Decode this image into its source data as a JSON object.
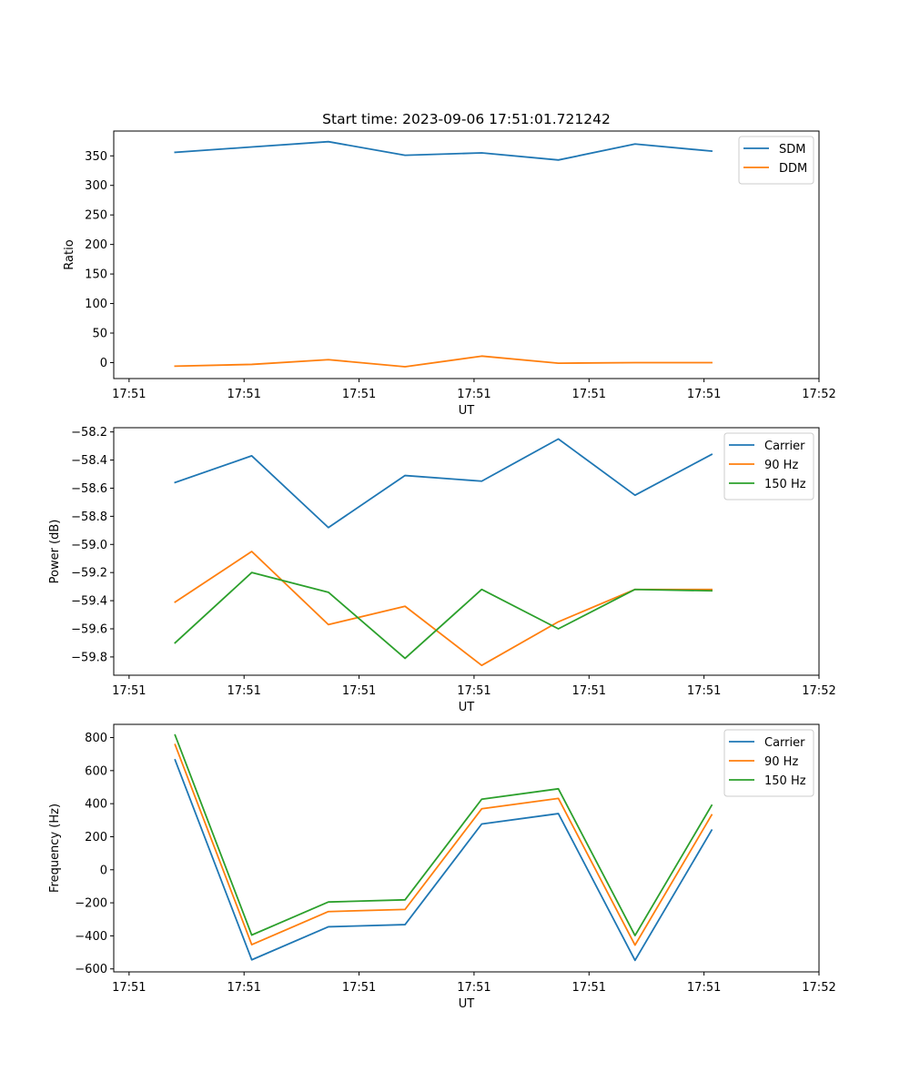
{
  "chart_data": [
    {
      "type": "line",
      "title": "Start time: 2023-09-06 17:51:01.721242",
      "xlabel": "UT",
      "ylabel": "Ratio",
      "x": [
        1,
        2,
        3,
        4,
        5,
        6,
        7,
        8
      ],
      "xlim": [
        0.2,
        9.4
      ],
      "xticks": [
        0.4,
        1.9,
        3.4,
        4.9,
        6.4,
        7.9,
        9.4
      ],
      "xtick_labels": [
        "17:51",
        "17:51",
        "17:51",
        "17:51",
        "17:51",
        "17:51",
        "17:52"
      ],
      "ylim": [
        -27,
        392
      ],
      "yticks": [
        0,
        50,
        100,
        150,
        200,
        250,
        300,
        350
      ],
      "ytick_labels": [
        "0",
        "50",
        "100",
        "150",
        "200",
        "250",
        "300",
        "350"
      ],
      "legend": "top-right",
      "series": [
        {
          "name": "SDM",
          "color": "#1f77b4",
          "values": [
            356,
            365,
            374,
            351,
            355,
            343,
            370,
            358
          ]
        },
        {
          "name": "DDM",
          "color": "#ff7f0e",
          "values": [
            -6,
            -3,
            5,
            -7,
            11,
            -1,
            0,
            0
          ]
        }
      ]
    },
    {
      "type": "line",
      "title": "",
      "xlabel": "UT",
      "ylabel": "Power (dB)",
      "x": [
        1,
        2,
        3,
        4,
        5,
        6,
        7,
        8
      ],
      "xlim": [
        0.2,
        9.4
      ],
      "xticks": [
        0.4,
        1.9,
        3.4,
        4.9,
        6.4,
        7.9,
        9.4
      ],
      "xtick_labels": [
        "17:51",
        "17:51",
        "17:51",
        "17:51",
        "17:51",
        "17:51",
        "17:52"
      ],
      "ylim": [
        -59.93,
        -58.17
      ],
      "yticks": [
        -58.2,
        -58.4,
        -58.6,
        -58.8,
        -59.0,
        -59.2,
        -59.4,
        -59.6,
        -59.8
      ],
      "ytick_labels": [
        "−58.2",
        "−58.4",
        "−58.6",
        "−58.8",
        "−59.0",
        "−59.2",
        "−59.4",
        "−59.6",
        "−59.8"
      ],
      "legend": "top-right",
      "series": [
        {
          "name": "Carrier",
          "color": "#1f77b4",
          "values": [
            -58.56,
            -58.37,
            -58.88,
            -58.51,
            -58.55,
            -58.25,
            -58.65,
            -58.36
          ]
        },
        {
          "name": "90 Hz",
          "color": "#ff7f0e",
          "values": [
            -59.41,
            -59.05,
            -59.57,
            -59.44,
            -59.86,
            -59.55,
            -59.32,
            -59.32
          ]
        },
        {
          "name": "150 Hz",
          "color": "#2ca02c",
          "values": [
            -59.7,
            -59.2,
            -59.34,
            -59.81,
            -59.32,
            -59.6,
            -59.32,
            -59.33
          ]
        }
      ]
    },
    {
      "type": "line",
      "title": "",
      "xlabel": "UT",
      "ylabel": "Frequency (Hz)",
      "x": [
        1,
        2,
        3,
        4,
        5,
        6,
        7,
        8
      ],
      "xlim": [
        0.2,
        9.4
      ],
      "xticks": [
        0.4,
        1.9,
        3.4,
        4.9,
        6.4,
        7.9,
        9.4
      ],
      "xtick_labels": [
        "17:51",
        "17:51",
        "17:51",
        "17:51",
        "17:51",
        "17:51",
        "17:52"
      ],
      "ylim": [
        -618,
        880
      ],
      "yticks": [
        -600,
        -400,
        -200,
        0,
        200,
        400,
        600,
        800
      ],
      "ytick_labels": [
        "−600",
        "−400",
        "−200",
        "0",
        "200",
        "400",
        "600",
        "800"
      ],
      "legend": "top-right",
      "series": [
        {
          "name": "Carrier",
          "color": "#1f77b4",
          "values": [
            665,
            -545,
            -345,
            -332,
            277,
            340,
            -548,
            240
          ]
        },
        {
          "name": "90 Hz",
          "color": "#ff7f0e",
          "values": [
            757,
            -453,
            -253,
            -240,
            369,
            432,
            -456,
            332
          ]
        },
        {
          "name": "150 Hz",
          "color": "#2ca02c",
          "values": [
            815,
            -395,
            -195,
            -182,
            427,
            490,
            -398,
            390
          ]
        }
      ]
    }
  ]
}
